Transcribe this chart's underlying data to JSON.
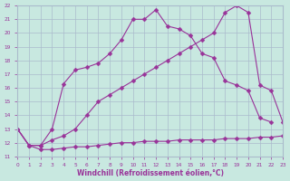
{
  "xlabel": "Windchill (Refroidissement éolien,°C)",
  "bg_color": "#c8e8e0",
  "grid_color": "#aabbcc",
  "line_color": "#993399",
  "xmin": 0,
  "xmax": 23,
  "ymin": 11,
  "ymax": 22,
  "curve_top_x": [
    0,
    1,
    2,
    3,
    4,
    5,
    6,
    7,
    8,
    9,
    10,
    11,
    12,
    13,
    14,
    15,
    16,
    17,
    18,
    19,
    20,
    21,
    22
  ],
  "curve_top_y": [
    13.0,
    11.8,
    11.8,
    13.0,
    16.3,
    17.3,
    17.5,
    17.8,
    18.5,
    19.5,
    21.0,
    21.0,
    21.7,
    20.5,
    20.3,
    19.8,
    18.5,
    18.2,
    16.5,
    16.2,
    15.8,
    13.8,
    13.5
  ],
  "curve_mid_x": [
    0,
    1,
    2,
    3,
    4,
    5,
    6,
    7,
    8,
    9,
    10,
    11,
    12,
    13,
    14,
    15,
    16,
    17,
    18,
    19,
    20,
    21,
    22,
    23
  ],
  "curve_mid_y": [
    13.0,
    11.8,
    11.8,
    12.2,
    12.5,
    13.0,
    14.0,
    15.0,
    15.5,
    16.0,
    16.5,
    17.0,
    17.5,
    18.0,
    18.5,
    19.0,
    19.5,
    20.0,
    21.5,
    22.0,
    21.5,
    16.2,
    15.8,
    13.5
  ],
  "curve_flat_x": [
    0,
    1,
    2,
    3,
    4,
    5,
    6,
    7,
    8,
    9,
    10,
    11,
    12,
    13,
    14,
    15,
    16,
    17,
    18,
    19,
    20,
    21,
    22,
    23
  ],
  "curve_flat_y": [
    13.0,
    11.8,
    11.5,
    11.5,
    11.6,
    11.7,
    11.7,
    11.8,
    11.9,
    12.0,
    12.0,
    12.1,
    12.1,
    12.1,
    12.2,
    12.2,
    12.2,
    12.2,
    12.3,
    12.3,
    12.3,
    12.4,
    12.4,
    12.5
  ]
}
